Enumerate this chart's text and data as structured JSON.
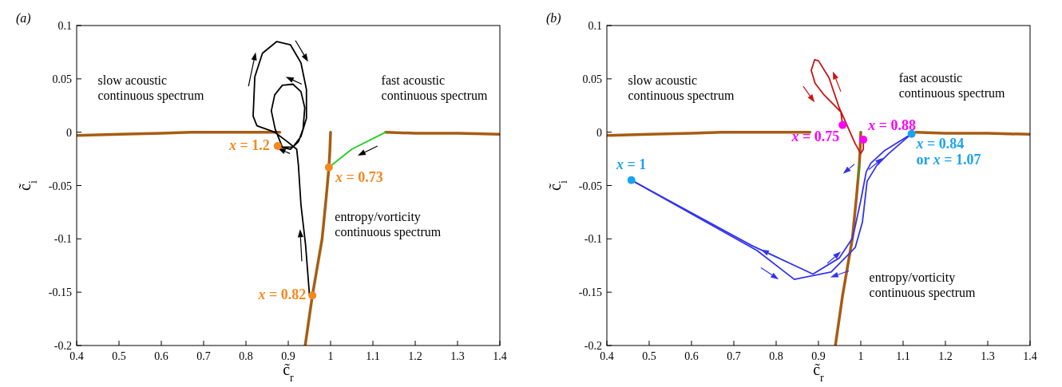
{
  "chart_data": [
    {
      "type": "line",
      "title": "(a)",
      "xlabel": "c̃$_{r}$",
      "ylabel": "c̃$_{i}$",
      "xlim": [
        0.4,
        1.4
      ],
      "ylim": [
        -0.2,
        0.1
      ],
      "xticks": [
        0.4,
        0.5,
        0.6,
        0.7,
        0.8,
        0.9,
        1,
        1.1,
        1.2,
        1.3,
        1.4
      ],
      "yticks": [
        -0.2,
        -0.15,
        -0.1,
        -0.05,
        0,
        0.05,
        0.1
      ],
      "annotations": [
        "slow acoustic\ncontinuous spectrum",
        "fast acoustic\ncontinuous spectrum",
        "entropy/vorticity\ncontinuous spectrum",
        {
          "text": "x = 1.2",
          "x": 0.875,
          "y": -0.013
        },
        {
          "text": "x = 0.73",
          "x": 0.996,
          "y": -0.033
        },
        {
          "text": "x = 0.82",
          "x": 0.957,
          "y": -0.153
        }
      ],
      "series": [
        {
          "color": "#a85c12",
          "values": [
            -0.003,
            -0.002,
            -0.001,
            0,
            0
          ],
          "x": [
            0.4,
            0.5,
            0.6,
            0.67,
            0.88
          ]
        },
        {
          "color": "#a85c12",
          "values": [
            0,
            -0.001,
            -0.001,
            -0.002
          ],
          "x": [
            1.13,
            1.2,
            1.3,
            1.4
          ]
        },
        {
          "color": "#a85c12",
          "values": [
            0,
            -0.02,
            -0.033,
            -0.06,
            -0.1,
            -0.153,
            -0.2
          ],
          "x": [
            1.0,
            0.998,
            0.996,
            0.99,
            0.98,
            0.957,
            0.94
          ]
        },
        {
          "color": "#22cc22",
          "values": [
            0,
            -0.002,
            -0.016,
            -0.033
          ],
          "x": [
            1.13,
            1.12,
            1.05,
            0.996
          ]
        },
        {
          "color": "#000000",
          "values": [
            -0.152,
            -0.106,
            -0.068,
            -0.031,
            -0.016,
            -0.008,
            0,
            0.006,
            0.015,
            0.052,
            0.074,
            0.085,
            0.082,
            0.065,
            0.04,
            0.013,
            -0.004,
            -0.014,
            -0.014,
            0.003,
            0.02,
            0.035,
            0.044,
            0.045,
            0.038,
            0.023,
            0.003,
            -0.009,
            -0.016,
            -0.013
          ],
          "x": [
            0.95,
            0.941,
            0.93,
            0.924,
            0.92,
            0.895,
            0.868,
            0.826,
            0.817,
            0.821,
            0.839,
            0.873,
            0.905,
            0.93,
            0.943,
            0.943,
            0.93,
            0.911,
            0.886,
            0.869,
            0.86,
            0.868,
            0.886,
            0.911,
            0.93,
            0.939,
            0.935,
            0.924,
            0.905,
            0.875
          ]
        },
        {
          "type": "scatter",
          "colors": [
            "#f7861e",
            "#f7861e",
            "#f7861e"
          ],
          "values": [
            -0.013,
            -0.033,
            -0.153
          ],
          "x": [
            0.875,
            0.996,
            0.957
          ]
        }
      ]
    },
    {
      "type": "line",
      "title": "(b)",
      "xlabel": "c̃$_{r}$",
      "ylabel": "c̃$_{i}$",
      "xlim": [
        0.4,
        1.4
      ],
      "ylim": [
        -0.2,
        0.1
      ],
      "xticks": [
        0.4,
        0.5,
        0.6,
        0.7,
        0.8,
        0.9,
        1,
        1.1,
        1.2,
        1.3,
        1.4
      ],
      "yticks": [
        -0.2,
        -0.15,
        -0.1,
        -0.05,
        0,
        0.05,
        0.1
      ],
      "annotations": [
        "slow acoustic\ncontinuous spectrum",
        "fast acoustic\ncontinuous spectrum",
        "entropy/vorticity\ncontinuous spectrum",
        {
          "text": "x = 1",
          "x": 0.458,
          "y": -0.045
        },
        {
          "text": "x = 0.88",
          "x": 1.006,
          "y": -0.007
        },
        {
          "text": "x = 0.75",
          "x": 0.957,
          "y": 0.0067
        },
        {
          "text": "x = 0.84\nor x = 1.07",
          "x": 1.12,
          "y": -0.0015
        }
      ],
      "series": [
        {
          "color": "#a85c12",
          "values": [
            -0.003,
            -0.002,
            -0.001,
            0,
            0
          ],
          "x": [
            0.4,
            0.5,
            0.6,
            0.67,
            0.88
          ]
        },
        {
          "color": "#a85c12",
          "values": [
            0,
            -0.001,
            -0.001,
            -0.002
          ],
          "x": [
            1.13,
            1.2,
            1.3,
            1.4
          ]
        },
        {
          "color": "#a85c12",
          "values": [
            0,
            -0.02,
            -0.033,
            -0.06,
            -0.1,
            -0.153,
            -0.2
          ],
          "x": [
            1.0,
            0.998,
            0.996,
            0.99,
            0.98,
            0.957,
            0.94
          ]
        },
        {
          "color": "#22aa22",
          "line_style": "dotted",
          "values": [
            -0.03,
            -0.045
          ],
          "x": [
            0.996,
            0.994
          ]
        },
        {
          "color": "#3333ee",
          "values": [
            -0.045,
            -0.106,
            -0.133,
            -0.118,
            -0.099,
            -0.064,
            -0.037,
            -0.029,
            -0.017,
            -0.0015
          ],
          "x": [
            0.458,
            0.741,
            0.887,
            0.949,
            0.981,
            1.0,
            1.013,
            1.024,
            1.057,
            1.12
          ]
        },
        {
          "color": "#3333ee",
          "values": [
            -0.045,
            -0.111,
            -0.138,
            -0.131,
            -0.108,
            -0.084,
            -0.046,
            -0.031,
            -0.02,
            -0.0015
          ],
          "x": [
            0.458,
            0.755,
            0.843,
            0.93,
            0.987,
            1.004,
            1.015,
            1.038,
            1.066,
            1.12
          ]
        },
        {
          "color": "#cc1111",
          "values": [
            0.0067,
            0.019,
            0.036,
            0.046,
            0.058,
            0.068,
            0.067,
            0.051,
            0.023,
            0.006,
            -0.011,
            -0.02,
            -0.016,
            -0.007
          ],
          "x": [
            0.957,
            0.953,
            0.911,
            0.892,
            0.883,
            0.891,
            0.9,
            0.925,
            0.949,
            0.968,
            0.987,
            1.0,
            1.006,
            1.006
          ]
        },
        {
          "type": "scatter",
          "colors": [
            "#1aa3f0",
            "#ff00ff",
            "#ff00ff",
            "#1aa3f0"
          ],
          "values": [
            -0.045,
            -0.007,
            0.0067,
            -0.0015
          ],
          "x": [
            0.458,
            1.006,
            0.957,
            1.12
          ]
        }
      ]
    }
  ]
}
